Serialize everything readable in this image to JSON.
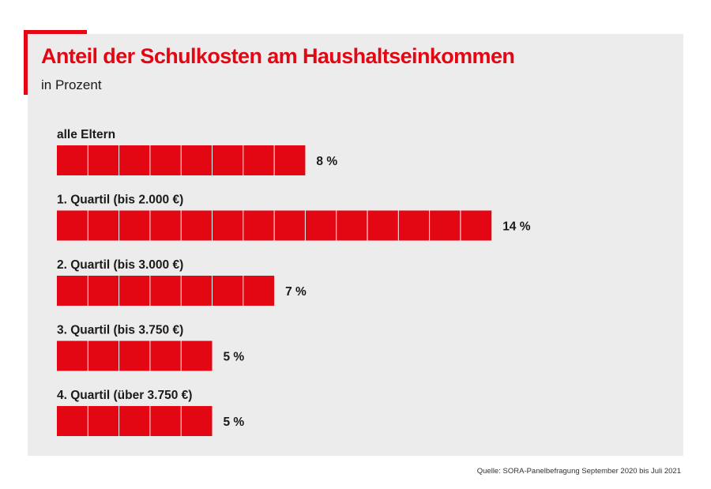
{
  "chart_data": {
    "type": "bar",
    "orientation": "horizontal",
    "title": "Anteil der Schulkosten am Haushaltseinkommen",
    "subtitle": "in Prozent",
    "categories": [
      "alle Eltern",
      "1. Quartil (bis 2.000 €)",
      "2. Quartil (bis 3.000 €)",
      "3. Quartil (bis 3.750 €)",
      "4. Quartil (über 3.750 €)"
    ],
    "values": [
      8,
      14,
      7,
      5,
      5
    ],
    "value_labels": [
      "8 %",
      "14 %",
      "7 %",
      "5 %",
      "5 %"
    ],
    "unit": "%",
    "xlim": [
      0,
      14
    ],
    "source": "Quelle: SORA-Panelbefragung September 2020 bis Juli 2021"
  },
  "colors": {
    "bar": "#e30613",
    "segment_divider": "#f7f7f7",
    "background_panel": "#ececec",
    "title": "#e30613"
  }
}
